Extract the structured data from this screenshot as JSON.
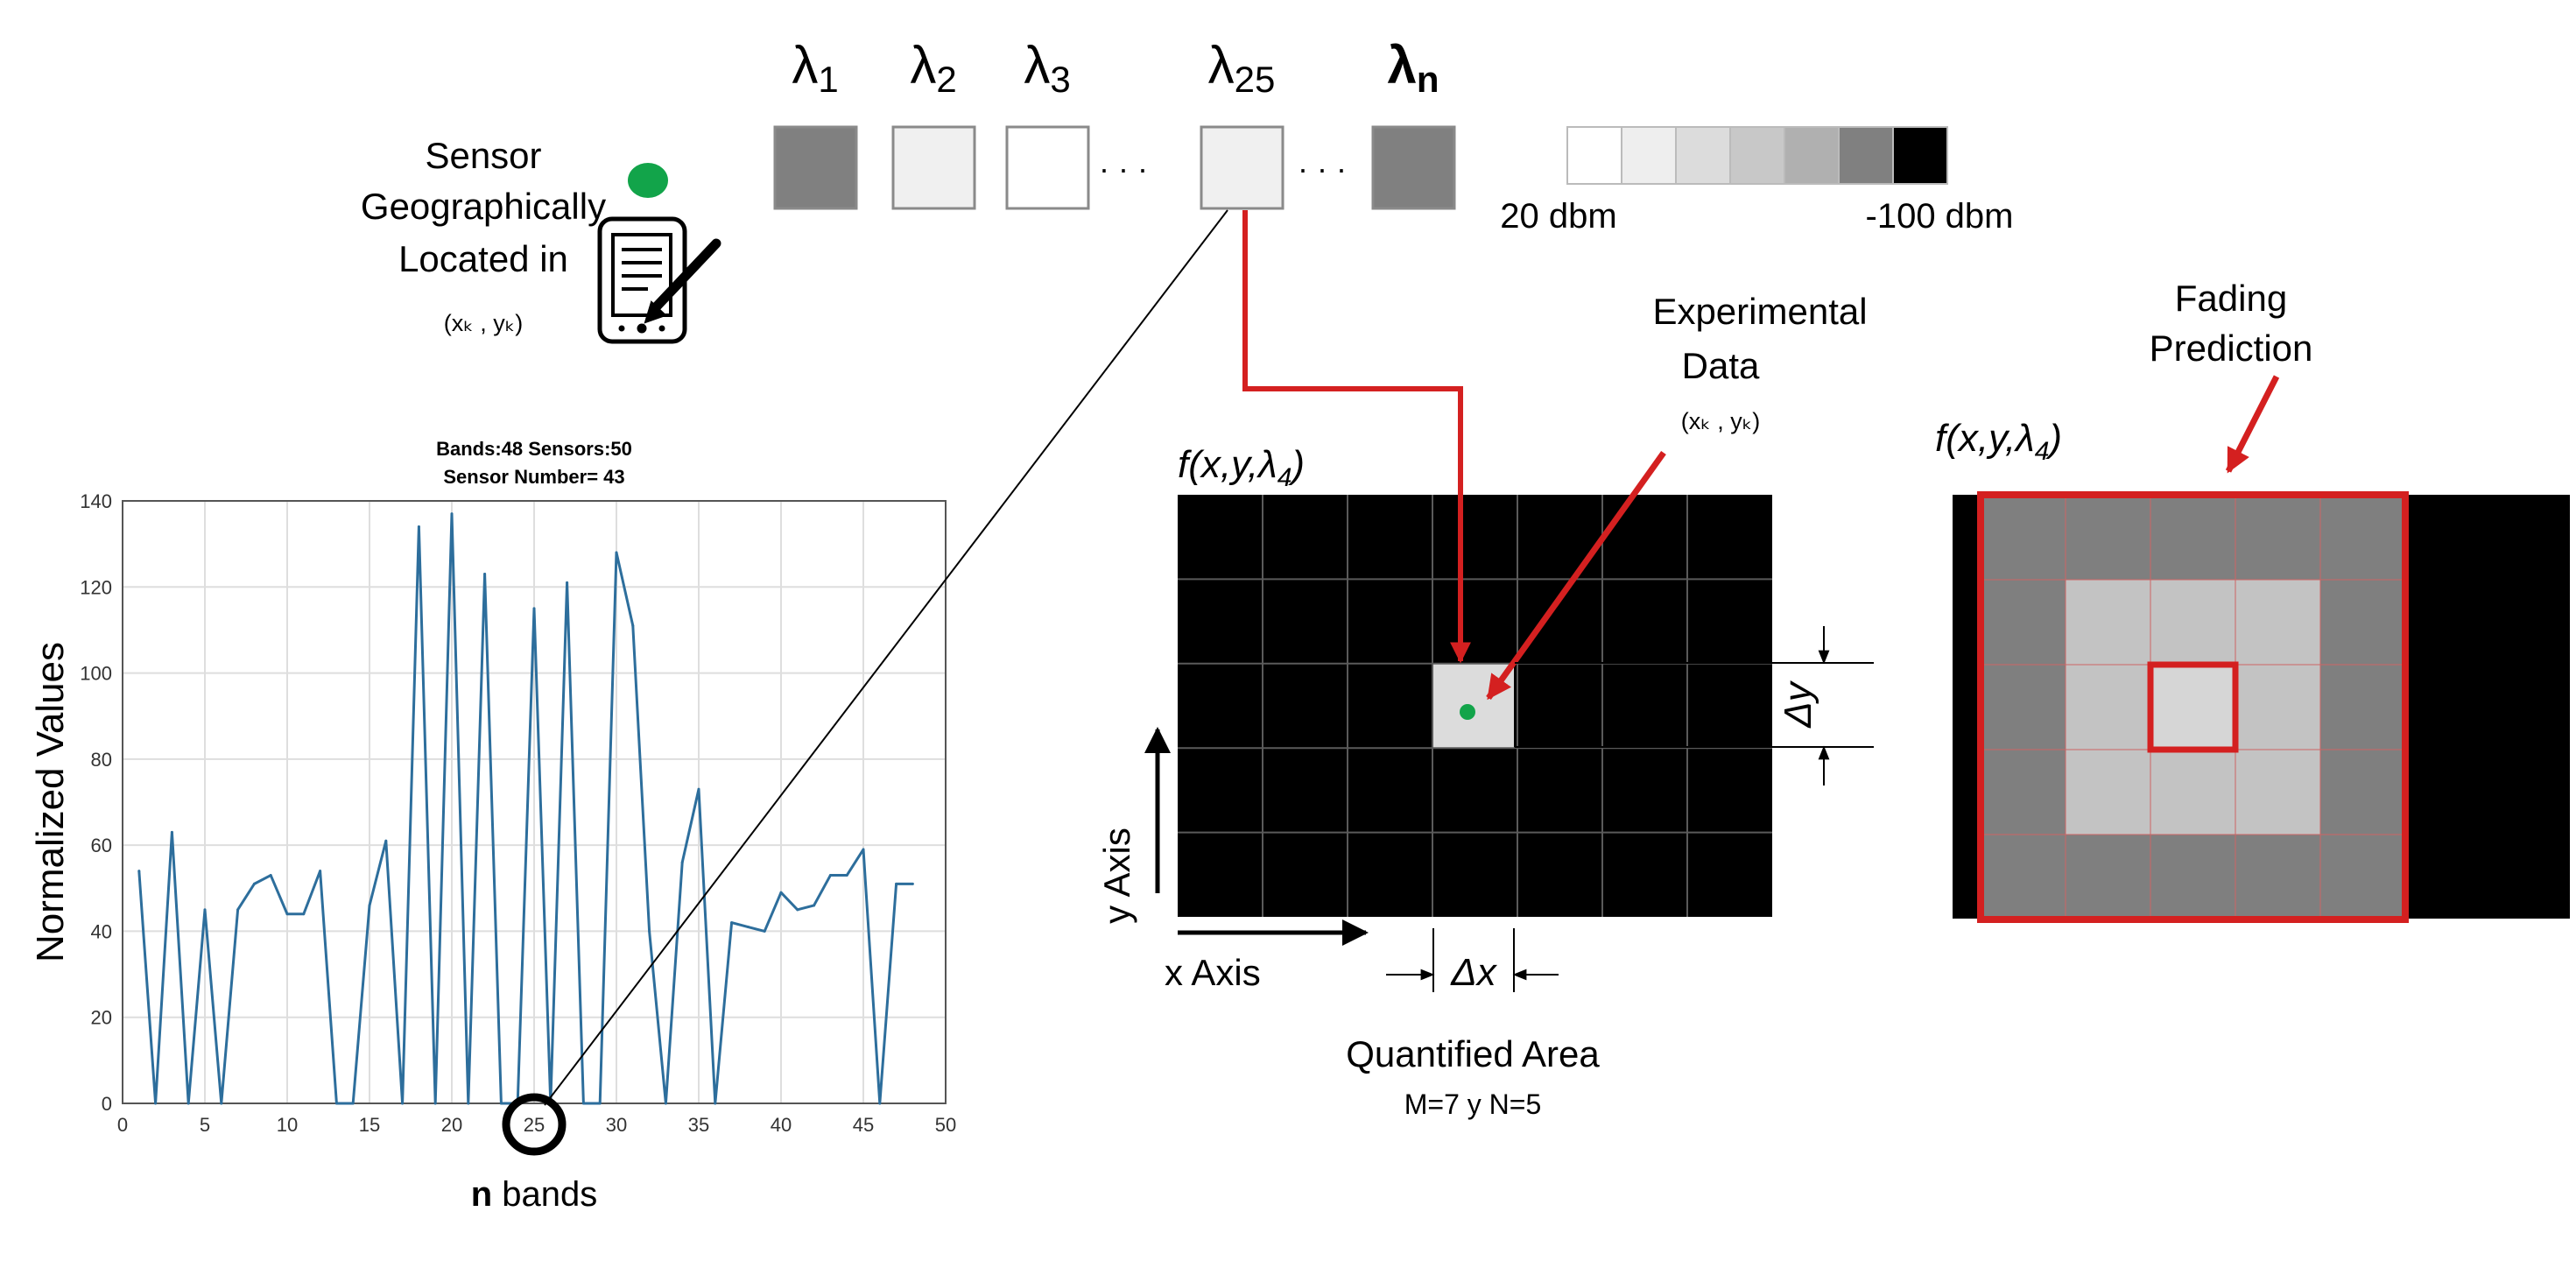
{
  "sensor": {
    "line1": "Sensor",
    "line2": "Geographically",
    "line3": "Located in",
    "coord": "(xₖ , yₖ)",
    "dot_color": "#12a44a",
    "icon": "handheld-device-icon"
  },
  "bands": {
    "items": [
      {
        "symbol": "λ",
        "sub": "1",
        "shade": "#808080"
      },
      {
        "symbol": "λ",
        "sub": "2",
        "shade": "#f0f0f0"
      },
      {
        "symbol": "λ",
        "sub": "3",
        "shade": "#ffffff"
      },
      {
        "symbol": "λ",
        "sub": "25",
        "shade": "#f0f0f0"
      },
      {
        "symbol": "λ",
        "sub": "n",
        "shade": "#808080"
      }
    ],
    "ellipsis": "· · ·"
  },
  "scale": {
    "shades": [
      "#ffffff",
      "#eeeeee",
      "#dcdcdc",
      "#c8c8c8",
      "#b0b0b0",
      "#808080",
      "#000000"
    ],
    "min_label": "20 dbm",
    "max_label": "-100 dbm"
  },
  "chart_data": {
    "type": "line",
    "title": "Bands:48  Sensors:50",
    "subtitle": "Sensor Number= 43",
    "xlabel_bold": "n",
    "xlabel_rest": " bands",
    "ylabel": "Normalized Values",
    "xlim": [
      0,
      50
    ],
    "ylim": [
      0,
      140
    ],
    "xticks": [
      0,
      5,
      10,
      15,
      20,
      25,
      30,
      35,
      40,
      45,
      50
    ],
    "yticks": [
      0,
      20,
      40,
      60,
      80,
      100,
      120,
      140
    ],
    "grid": true,
    "line_color": "#2d6e9c",
    "highlight_x": 25,
    "series": [
      {
        "x": [
          1,
          2,
          3,
          4,
          5,
          6,
          7,
          8,
          9,
          10,
          11,
          12,
          13,
          14,
          15,
          16,
          17,
          18,
          19,
          20,
          21,
          22,
          23,
          24,
          25,
          26,
          27,
          28,
          29,
          30,
          31,
          32,
          33,
          34,
          35,
          36,
          37,
          38,
          39,
          40,
          41,
          42,
          43,
          44,
          45,
          46,
          47,
          48
        ],
        "values": [
          54,
          0,
          63,
          0,
          45,
          0,
          45,
          51,
          53,
          44,
          44,
          54,
          0,
          0,
          46,
          61,
          0,
          134,
          0,
          137,
          0,
          123,
          0,
          0,
          115,
          0,
          121,
          0,
          0,
          128,
          111,
          40,
          0,
          56,
          73,
          0,
          42,
          41,
          40,
          49,
          45,
          46,
          53,
          53,
          59,
          0,
          51,
          51
        ]
      }
    ]
  },
  "grid_left": {
    "title_f": "f(x,y,λ",
    "title_sub": "4",
    "title_close": ")",
    "cols": 7,
    "rows": 5,
    "experimental": "Experimental",
    "data": "Data",
    "coord": "(xₖ , yₖ)",
    "delta_y": "Δy",
    "delta_x": "Δx",
    "y_axis": "y Axis",
    "x_axis": "x Axis",
    "area": "Quantified Area",
    "dims": "M=7 y N=5",
    "cell_color": "#dcdcdc",
    "accent": "#d42020"
  },
  "grid_right": {
    "title_f": "f(x,y,λ",
    "title_sub": "4",
    "title_close": ")",
    "label1": "Fading",
    "label2": "Prediction",
    "outer": "#7f7f7f",
    "mid": "#c3c3c3",
    "center": "#d6d6d6",
    "accent": "#d42020"
  }
}
